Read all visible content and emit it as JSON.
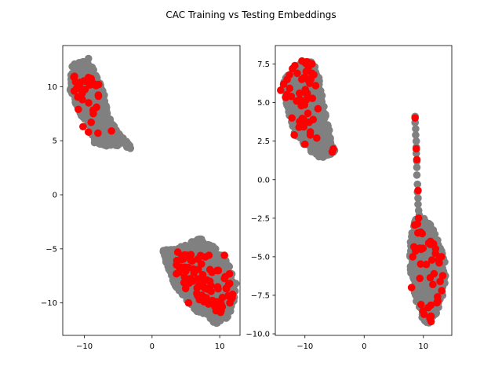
{
  "figure": {
    "title": "CAC Training vs Testing Embeddings"
  },
  "chart_data": [
    {
      "type": "scatter",
      "title": "",
      "xlabel": "",
      "ylabel": "",
      "xlim": [
        -13.2,
        13.0
      ],
      "ylim": [
        -13.0,
        13.8
      ],
      "x_ticks": [
        -10,
        0,
        10
      ],
      "y_ticks": [
        -10,
        -5,
        0,
        5,
        10
      ],
      "grid": false,
      "legend": "none",
      "series": [
        {
          "color": "#808080",
          "clusters": [
            {
              "polygon": [
                [
                  -11.8,
                  12.1
                ],
                [
                  -9.5,
                  12.4
                ],
                [
                  -8.6,
                  11.6
                ],
                [
                  -7.0,
                  9.3
                ],
                [
                  -6.5,
                  7.3
                ],
                [
                  -5.0,
                  5.8
                ],
                [
                  -3.3,
                  4.6
                ],
                [
                  -3.0,
                  4.2
                ],
                [
                  -4.6,
                  4.6
                ],
                [
                  -6.5,
                  4.4
                ],
                [
                  -8.5,
                  4.8
                ],
                [
                  -9.7,
                  6.4
                ],
                [
                  -11.0,
                  7.9
                ],
                [
                  -12.2,
                  9.8
                ]
              ],
              "count": 700
            },
            {
              "polygon": [
                [
                  1.6,
                  -5.1
                ],
                [
                  3.4,
                  -5.0
                ],
                [
                  6.0,
                  -4.3
                ],
                [
                  7.0,
                  -4.0
                ],
                [
                  9.3,
                  -4.8
                ],
                [
                  11.2,
                  -6.3
                ],
                [
                  12.4,
                  -8.2
                ],
                [
                  12.3,
                  -10.0
                ],
                [
                  11.0,
                  -11.5
                ],
                [
                  9.5,
                  -11.9
                ],
                [
                  8.5,
                  -11.6
                ],
                [
                  6.0,
                  -10.5
                ],
                [
                  3.5,
                  -8.5
                ],
                [
                  2.2,
                  -6.7
                ]
              ],
              "count": 900
            }
          ],
          "points": [
            [
              -9.4,
              12.6
            ],
            [
              -3.2,
              4.3
            ],
            [
              -3.6,
              4.6
            ],
            [
              1.7,
              -5.2
            ],
            [
              2.1,
              -5.1
            ]
          ]
        },
        {
          "color": "#ff0000",
          "clusters": [
            {
              "polygon": [
                [
                  -11.6,
                  11.0
                ],
                [
                  -9.5,
                  11.5
                ],
                [
                  -8.0,
                  10.0
                ],
                [
                  -7.5,
                  8.0
                ],
                [
                  -8.8,
                  7.0
                ],
                [
                  -10.6,
                  8.0
                ],
                [
                  -11.7,
                  9.5
                ]
              ],
              "count": 28
            },
            {
              "polygon": [
                [
                  2.8,
                  -5.3
                ],
                [
                  5.5,
                  -5.0
                ],
                [
                  9.5,
                  -5.6
                ],
                [
                  11.8,
                  -7.5
                ],
                [
                  12.0,
                  -10.0
                ],
                [
                  10.0,
                  -11.0
                ],
                [
                  6.0,
                  -9.5
                ],
                [
                  3.2,
                  -7.5
                ]
              ],
              "count": 70
            }
          ],
          "points": [
            [
              -9.6,
              10.5
            ],
            [
              -7.9,
              10.2
            ],
            [
              -11.5,
              9.6
            ],
            [
              -10.3,
              8.8
            ],
            [
              -8.2,
              8.1
            ],
            [
              -10.9,
              7.9
            ],
            [
              -9.0,
              6.7
            ],
            [
              -8.0,
              5.7
            ],
            [
              -9.4,
              5.8
            ],
            [
              -6.0,
              5.9
            ],
            [
              -10.2,
              6.3
            ],
            [
              3.8,
              -5.3
            ],
            [
              4.4,
              -6.0
            ],
            [
              5.2,
              -5.6
            ],
            [
              3.6,
              -7.3
            ],
            [
              4.8,
              -7.6
            ],
            [
              7.3,
              -6.4
            ],
            [
              8.4,
              -5.6
            ],
            [
              8.7,
              -8.4
            ],
            [
              6.2,
              -7.2
            ],
            [
              10.7,
              -5.6
            ],
            [
              9.6,
              -7.0
            ],
            [
              11.0,
              -8.7
            ],
            [
              10.4,
              -9.5
            ],
            [
              11.5,
              -10.0
            ],
            [
              10.2,
              -10.5
            ],
            [
              5.4,
              -10.0
            ],
            [
              9.8,
              -9.9
            ],
            [
              7.0,
              -9.7
            ],
            [
              11.9,
              -9.2
            ],
            [
              8.1,
              -9.8
            ],
            [
              6.9,
              -8.4
            ]
          ]
        }
      ]
    },
    {
      "type": "scatter",
      "title": "",
      "xlabel": "",
      "ylabel": "",
      "xlim": [
        -15.0,
        14.8
      ],
      "ylim": [
        -10.1,
        8.7
      ],
      "x_ticks": [
        -10,
        0,
        10
      ],
      "y_ticks": [
        -10.0,
        -7.5,
        -5.0,
        -2.5,
        0.0,
        2.5,
        5.0,
        7.5
      ],
      "tick_labels_y": [
        "−10.0",
        "−7.5",
        "−5.0",
        "−2.5",
        "0.0",
        "2.5",
        "5.0",
        "7.5"
      ],
      "grid": false,
      "legend": "none",
      "series": [
        {
          "color": "#808080",
          "clusters": [
            {
              "polygon": [
                [
                  -13.9,
                  6.3
                ],
                [
                  -12.5,
                  7.0
                ],
                [
                  -10.6,
                  7.6
                ],
                [
                  -8.6,
                  7.7
                ],
                [
                  -7.7,
                  6.8
                ],
                [
                  -6.6,
                  4.5
                ],
                [
                  -5.7,
                  3.0
                ],
                [
                  -5.0,
                  1.7
                ],
                [
                  -7.5,
                  1.3
                ],
                [
                  -10.0,
                  2.2
                ],
                [
                  -11.9,
                  3.0
                ],
                [
                  -13.0,
                  4.7
                ]
              ],
              "count": 700
            },
            {
              "polygon": [
                [
                  8.7,
                  -2.5
                ],
                [
                  10.2,
                  -2.4
                ],
                [
                  11.5,
                  -3.1
                ],
                [
                  12.8,
                  -4.2
                ],
                [
                  13.9,
                  -5.7
                ],
                [
                  13.5,
                  -7.3
                ],
                [
                  12.2,
                  -8.7
                ],
                [
                  11.0,
                  -9.3
                ],
                [
                  10.0,
                  -9.2
                ],
                [
                  8.8,
                  -8.2
                ],
                [
                  7.9,
                  -6.3
                ],
                [
                  7.6,
                  -4.5
                ],
                [
                  8.2,
                  -3.2
                ]
              ],
              "count": 600
            }
          ],
          "points": [
            [
              8.6,
              4.1
            ],
            [
              8.6,
              3.7
            ],
            [
              8.7,
              3.3
            ],
            [
              8.7,
              2.9
            ],
            [
              8.8,
              2.5
            ],
            [
              8.8,
              2.1
            ],
            [
              8.8,
              1.7
            ],
            [
              8.9,
              1.2
            ],
            [
              8.9,
              0.8
            ],
            [
              8.9,
              0.3
            ],
            [
              9.0,
              -0.3
            ],
            [
              9.0,
              -0.8
            ],
            [
              9.1,
              -1.2
            ],
            [
              9.1,
              -1.6
            ],
            [
              9.2,
              -2.0
            ],
            [
              9.3,
              -2.3
            ],
            [
              -5.0,
              1.9
            ],
            [
              -5.3,
              2.1
            ]
          ]
        },
        {
          "color": "#ff0000",
          "clusters": [
            {
              "polygon": [
                [
                  -13.7,
                  6.0
                ],
                [
                  -12.2,
                  6.8
                ],
                [
                  -10.6,
                  7.8
                ],
                [
                  -8.6,
                  7.5
                ],
                [
                  -7.9,
                  5.0
                ],
                [
                  -8.5,
                  3.2
                ],
                [
                  -10.5,
                  2.8
                ],
                [
                  -12.0,
                  3.8
                ],
                [
                  -13.6,
                  5.4
                ]
              ],
              "count": 30
            },
            {
              "polygon": [
                [
                  8.5,
                  -2.3
                ],
                [
                  11.5,
                  -3.5
                ],
                [
                  13.8,
                  -5.1
                ],
                [
                  12.9,
                  -7.3
                ],
                [
                  11.3,
                  -9.3
                ],
                [
                  9.5,
                  -8.9
                ],
                [
                  8.1,
                  -7.0
                ],
                [
                  8.0,
                  -4.3
                ]
              ],
              "count": 30
            }
          ],
          "points": [
            [
              -14.1,
              5.8
            ],
            [
              -13.6,
              6.2
            ],
            [
              -13.0,
              6.5
            ],
            [
              -12.6,
              6.8
            ],
            [
              -12.1,
              7.2
            ],
            [
              -11.7,
              7.4
            ],
            [
              -11.3,
              6.9
            ],
            [
              -10.5,
              7.7
            ],
            [
              -9.9,
              7.6
            ],
            [
              -9.4,
              7.3
            ],
            [
              -8.8,
              6.9
            ],
            [
              -8.2,
              6.1
            ],
            [
              -12.3,
              5.4
            ],
            [
              -11.4,
              5.1
            ],
            [
              -10.6,
              4.8
            ],
            [
              -9.5,
              4.3
            ],
            [
              -12.2,
              4.0
            ],
            [
              -8.6,
              3.9
            ],
            [
              -11.0,
              3.4
            ],
            [
              -9.1,
              2.9
            ],
            [
              -11.8,
              2.9
            ],
            [
              -10.0,
              2.3
            ],
            [
              -8.0,
              2.7
            ],
            [
              -5.2,
              2.0
            ],
            [
              -5.4,
              1.8
            ],
            [
              -7.8,
              4.6
            ],
            [
              -9.6,
              5.6
            ],
            [
              8.6,
              4.0
            ],
            [
              8.8,
              2.0
            ],
            [
              8.9,
              1.3
            ],
            [
              9.1,
              -0.7
            ],
            [
              9.2,
              -2.5
            ],
            [
              9.8,
              -3.5
            ],
            [
              11.2,
              -4.0
            ],
            [
              8.2,
              -5.0
            ],
            [
              10.5,
              -5.5
            ],
            [
              12.6,
              -5.2
            ],
            [
              9.4,
              -6.4
            ],
            [
              11.8,
              -6.1
            ],
            [
              8.0,
              -7.0
            ],
            [
              11.6,
              -6.8
            ],
            [
              12.4,
              -7.6
            ],
            [
              13.1,
              -7.2
            ],
            [
              9.6,
              -8.1
            ],
            [
              10.8,
              -8.3
            ],
            [
              11.1,
              -9.0
            ],
            [
              11.3,
              -9.2
            ]
          ]
        }
      ]
    }
  ]
}
